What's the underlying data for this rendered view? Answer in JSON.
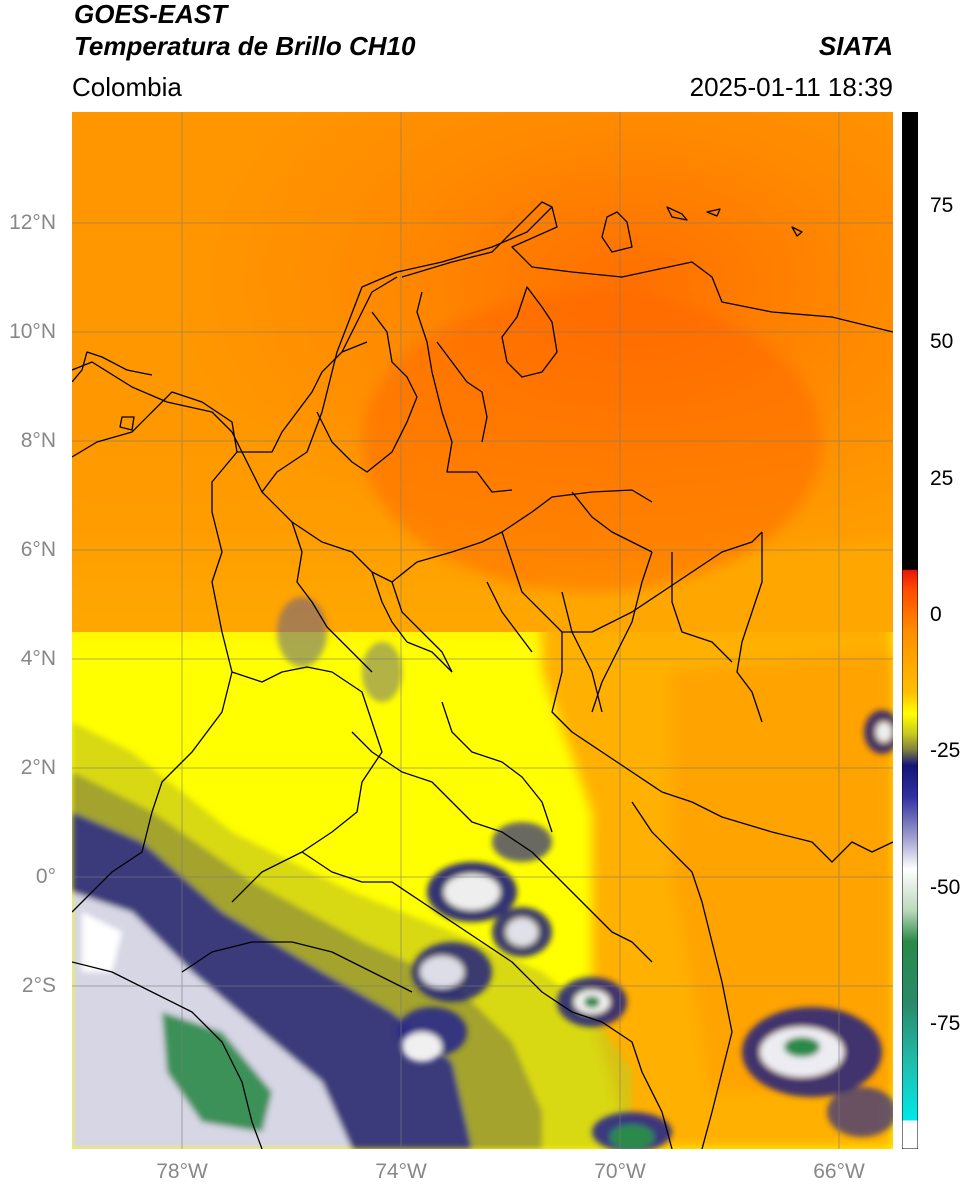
{
  "header": {
    "title_line1": "GOES-EAST",
    "title_line2": "Temperatura de Brillo CH10",
    "region": "Colombia",
    "brand": "SIATA",
    "datetime": "2025-01-11 18:39"
  },
  "map": {
    "lat_ticks": [
      "12°N",
      "10°N",
      "8°N",
      "6°N",
      "4°N",
      "2°N",
      "0°",
      "2°S"
    ],
    "lon_ticks": [
      "78°W",
      "74°W",
      "70°W",
      "66°W"
    ]
  },
  "colorbar": {
    "ticks": [
      "75",
      "50",
      "25",
      "0",
      "-25",
      "-50",
      "-75"
    ],
    "colors": {
      "black": "#000000",
      "red": "#e8180a",
      "orange": "#ff8c00",
      "yellow": "#ffff00",
      "olive": "#9a9a30",
      "navy": "#14147a",
      "white": "#ffffff",
      "green": "#2a8a48",
      "cyan": "#00e0e0"
    }
  }
}
